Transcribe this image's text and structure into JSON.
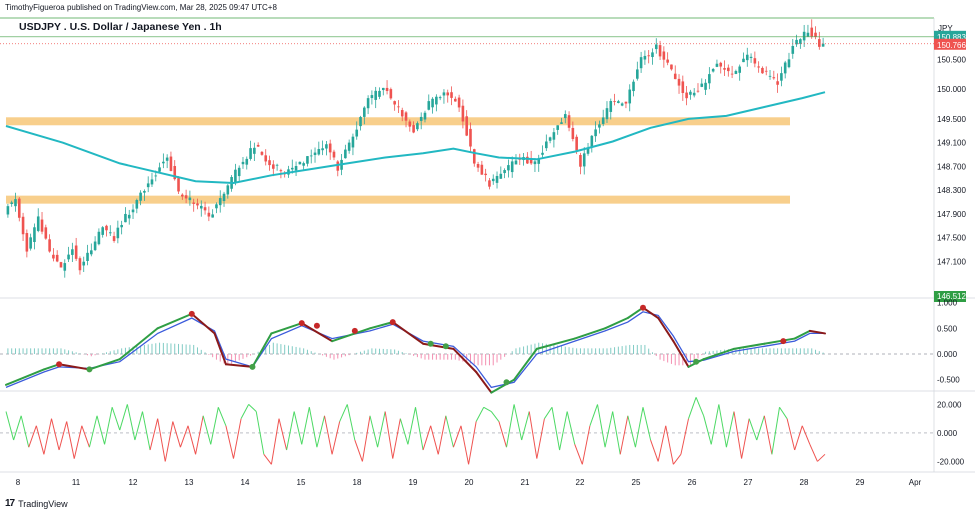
{
  "header": {
    "published_by": "TimothyFigueroa published on TradingView.com, Mar 28, 2025 09:47 UTC+8",
    "symbol_title": "USDJPY . U.S. Dollar / Japanese Yen . 1h",
    "currency": "JPY"
  },
  "footer": {
    "brand": "TradingView",
    "logo_text": "17"
  },
  "colors": {
    "up": "#26a69a",
    "down": "#ef5350",
    "ma": "#22b8c2",
    "zone": "#f8cf8c",
    "macd_fast": "#2f9e44",
    "macd_slow": "#3b5bdb",
    "macd_dark": "#8b1a1a",
    "osc_up": "#4cd964",
    "osc_down": "#ef5350",
    "price_line": "#43a047"
  },
  "chart_data": [
    {
      "type": "candlestick",
      "title": "USDJPY . U.S. Dollar / Japanese Yen . 1h",
      "x_ticks": [
        "8",
        "11",
        "12",
        "13",
        "14",
        "15",
        "18",
        "19",
        "20",
        "21",
        "22",
        "25",
        "26",
        "27",
        "28",
        "29",
        "Apr"
      ],
      "y_ticks": [
        "150.500",
        "150.000",
        "149.500",
        "149.100",
        "148.700",
        "148.300",
        "147.900",
        "147.500",
        "147.100"
      ],
      "ylim": [
        146.5,
        151.2
      ],
      "current_price": 150.883,
      "secondary_price": 150.766,
      "low_marker": 146.512,
      "path_points": [
        [
          0,
          147.95
        ],
        [
          3,
          148.15
        ],
        [
          6,
          147.3
        ],
        [
          9,
          147.8
        ],
        [
          12,
          147.25
        ],
        [
          15,
          146.95
        ],
        [
          18,
          147.35
        ],
        [
          20,
          147.0
        ],
        [
          23,
          147.3
        ],
        [
          26,
          147.7
        ],
        [
          29,
          147.5
        ],
        [
          32,
          147.85
        ],
        [
          36,
          148.2
        ],
        [
          40,
          148.6
        ],
        [
          43,
          148.9
        ],
        [
          46,
          148.25
        ],
        [
          50,
          148.1
        ],
        [
          54,
          147.85
        ],
        [
          58,
          148.25
        ],
        [
          62,
          148.7
        ],
        [
          66,
          149.05
        ],
        [
          70,
          148.75
        ],
        [
          74,
          148.6
        ],
        [
          78,
          148.75
        ],
        [
          82,
          148.95
        ],
        [
          85,
          149.1
        ],
        [
          88,
          148.65
        ],
        [
          92,
          149.2
        ],
        [
          96,
          149.8
        ],
        [
          100,
          150.05
        ],
        [
          104,
          149.65
        ],
        [
          108,
          149.3
        ],
        [
          112,
          149.75
        ],
        [
          116,
          149.95
        ],
        [
          120,
          149.75
        ],
        [
          124,
          148.8
        ],
        [
          128,
          148.4
        ],
        [
          132,
          148.6
        ],
        [
          136,
          148.85
        ],
        [
          140,
          148.75
        ],
        [
          144,
          149.2
        ],
        [
          148,
          149.55
        ],
        [
          152,
          148.75
        ],
        [
          156,
          149.3
        ],
        [
          160,
          149.75
        ],
        [
          164,
          149.8
        ],
        [
          168,
          150.5
        ],
        [
          172,
          150.7
        ],
        [
          176,
          150.3
        ],
        [
          180,
          149.85
        ],
        [
          184,
          150.05
        ],
        [
          188,
          150.45
        ],
        [
          192,
          150.25
        ],
        [
          196,
          150.55
        ],
        [
          200,
          150.3
        ],
        [
          204,
          150.1
        ],
        [
          208,
          150.7
        ],
        [
          212,
          151.0
        ],
        [
          215,
          150.75
        ],
        [
          216,
          150.766
        ]
      ],
      "moving_average": [
        [
          0,
          149.38
        ],
        [
          15,
          149.1
        ],
        [
          30,
          148.75
        ],
        [
          40,
          148.6
        ],
        [
          50,
          148.45
        ],
        [
          60,
          148.42
        ],
        [
          70,
          148.55
        ],
        [
          80,
          148.65
        ],
        [
          90,
          148.75
        ],
        [
          100,
          148.85
        ],
        [
          110,
          148.92
        ],
        [
          118,
          149.0
        ],
        [
          124,
          148.92
        ],
        [
          130,
          148.85
        ],
        [
          140,
          148.82
        ],
        [
          150,
          148.95
        ],
        [
          160,
          149.12
        ],
        [
          170,
          149.35
        ],
        [
          180,
          149.5
        ],
        [
          190,
          149.55
        ],
        [
          200,
          149.7
        ],
        [
          210,
          149.85
        ],
        [
          216,
          149.95
        ]
      ],
      "support_resistance_zones": [
        149.46,
        148.14
      ]
    },
    {
      "type": "line",
      "y_ticks": [
        "1.000",
        "0.500",
        "0.000",
        "-0.500"
      ],
      "ylim": [
        -0.7,
        1.05
      ],
      "series": [
        {
          "points": [
            [
              0,
              -0.6
            ],
            [
              10,
              -0.3
            ],
            [
              14,
              -0.2
            ],
            [
              22,
              -0.3
            ],
            [
              30,
              -0.1
            ],
            [
              40,
              0.5
            ],
            [
              49,
              0.78
            ],
            [
              55,
              0.4
            ],
            [
              58,
              -0.2
            ],
            [
              65,
              -0.25
            ],
            [
              70,
              0.4
            ],
            [
              78,
              0.6
            ],
            [
              86,
              0.25
            ],
            [
              96,
              0.5
            ],
            [
              102,
              0.62
            ],
            [
              110,
              0.2
            ],
            [
              118,
              0.1
            ],
            [
              124,
              -0.35
            ],
            [
              128,
              -0.75
            ],
            [
              134,
              -0.5
            ],
            [
              140,
              0.1
            ],
            [
              150,
              0.3
            ],
            [
              158,
              0.5
            ],
            [
              164,
              0.7
            ],
            [
              168,
              0.9
            ],
            [
              172,
              0.7
            ],
            [
              176,
              0.25
            ],
            [
              180,
              -0.25
            ],
            [
              184,
              -0.1
            ],
            [
              192,
              0.1
            ],
            [
              200,
              0.2
            ],
            [
              208,
              0.3
            ],
            [
              212,
              0.45
            ],
            [
              216,
              0.4
            ]
          ]
        },
        {
          "points": [
            [
              0,
              -0.65
            ],
            [
              10,
              -0.35
            ],
            [
              14,
              -0.25
            ],
            [
              22,
              -0.28
            ],
            [
              30,
              -0.15
            ],
            [
              40,
              0.4
            ],
            [
              49,
              0.7
            ],
            [
              55,
              0.45
            ],
            [
              58,
              -0.1
            ],
            [
              65,
              -0.25
            ],
            [
              70,
              0.3
            ],
            [
              78,
              0.55
            ],
            [
              86,
              0.3
            ],
            [
              96,
              0.45
            ],
            [
              102,
              0.58
            ],
            [
              110,
              0.25
            ],
            [
              118,
              0.15
            ],
            [
              124,
              -0.25
            ],
            [
              128,
              -0.65
            ],
            [
              134,
              -0.55
            ],
            [
              140,
              0.0
            ],
            [
              150,
              0.25
            ],
            [
              158,
              0.45
            ],
            [
              164,
              0.62
            ],
            [
              168,
              0.82
            ],
            [
              172,
              0.75
            ],
            [
              176,
              0.35
            ],
            [
              180,
              -0.15
            ],
            [
              184,
              -0.12
            ],
            [
              192,
              0.05
            ],
            [
              200,
              0.15
            ],
            [
              208,
              0.25
            ],
            [
              212,
              0.4
            ],
            [
              216,
              0.4
            ]
          ]
        }
      ],
      "dots": [
        [
          14,
          -0.2,
          "down"
        ],
        [
          22,
          -0.3,
          "up"
        ],
        [
          49,
          0.78,
          "down"
        ],
        [
          65,
          -0.25,
          "up"
        ],
        [
          78,
          0.6,
          "down"
        ],
        [
          82,
          0.55,
          "down"
        ],
        [
          92,
          0.45,
          "down"
        ],
        [
          102,
          0.62,
          "down"
        ],
        [
          112,
          0.2,
          "up"
        ],
        [
          116,
          0.15,
          "up"
        ],
        [
          132,
          -0.55,
          "up"
        ],
        [
          168,
          0.9,
          "down"
        ],
        [
          182,
          -0.15,
          "up"
        ],
        [
          205,
          0.25,
          "down"
        ]
      ]
    },
    {
      "type": "line",
      "y_ticks": [
        "20.000",
        "0.000",
        "-20.000"
      ],
      "ylim": [
        -26,
        28
      ],
      "series": [
        {
          "points": [
            [
              0,
              15
            ],
            [
              2,
              -5
            ],
            [
              4,
              12
            ],
            [
              6,
              -10
            ],
            [
              8,
              5
            ],
            [
              10,
              -15
            ],
            [
              12,
              10
            ],
            [
              14,
              -12
            ],
            [
              16,
              8
            ],
            [
              18,
              -18
            ],
            [
              20,
              5
            ],
            [
              22,
              -10
            ],
            [
              24,
              12
            ],
            [
              26,
              -8
            ],
            [
              28,
              18
            ],
            [
              30,
              2
            ],
            [
              32,
              20
            ],
            [
              34,
              -5
            ],
            [
              36,
              15
            ],
            [
              38,
              -12
            ],
            [
              40,
              10
            ],
            [
              42,
              -20
            ],
            [
              44,
              8
            ],
            [
              46,
              -10
            ],
            [
              48,
              5
            ],
            [
              50,
              -15
            ],
            [
              52,
              12
            ],
            [
              54,
              -8
            ],
            [
              56,
              18
            ],
            [
              58,
              5
            ],
            [
              60,
              -18
            ],
            [
              62,
              10
            ],
            [
              64,
              20
            ],
            [
              66,
              15
            ],
            [
              68,
              -15
            ],
            [
              70,
              -22
            ],
            [
              72,
              10
            ],
            [
              74,
              -12
            ],
            [
              76,
              15
            ],
            [
              78,
              -8
            ],
            [
              80,
              18
            ],
            [
              82,
              -10
            ],
            [
              84,
              12
            ],
            [
              86,
              -15
            ],
            [
              88,
              8
            ],
            [
              90,
              20
            ],
            [
              92,
              -5
            ],
            [
              94,
              -20
            ],
            [
              96,
              12
            ],
            [
              98,
              -10
            ],
            [
              100,
              15
            ],
            [
              102,
              -18
            ],
            [
              104,
              10
            ],
            [
              106,
              -8
            ],
            [
              108,
              18
            ],
            [
              110,
              -12
            ],
            [
              112,
              5
            ],
            [
              114,
              -15
            ],
            [
              116,
              12
            ],
            [
              118,
              -10
            ],
            [
              120,
              5
            ],
            [
              122,
              -22
            ],
            [
              124,
              8
            ],
            [
              126,
              18
            ],
            [
              128,
              15
            ],
            [
              130,
              8
            ],
            [
              132,
              -10
            ],
            [
              134,
              20
            ],
            [
              136,
              -5
            ],
            [
              138,
              15
            ],
            [
              140,
              -18
            ],
            [
              142,
              10
            ],
            [
              144,
              18
            ],
            [
              146,
              -12
            ],
            [
              148,
              15
            ],
            [
              150,
              -8
            ],
            [
              152,
              -22
            ],
            [
              154,
              5
            ],
            [
              156,
              20
            ],
            [
              158,
              -10
            ],
            [
              160,
              15
            ],
            [
              162,
              -15
            ],
            [
              164,
              12
            ],
            [
              166,
              -10
            ],
            [
              168,
              18
            ],
            [
              170,
              -5
            ],
            [
              172,
              -20
            ],
            [
              174,
              5
            ],
            [
              176,
              -22
            ],
            [
              178,
              -15
            ],
            [
              180,
              10
            ],
            [
              182,
              25
            ],
            [
              184,
              12
            ],
            [
              186,
              -8
            ],
            [
              188,
              20
            ],
            [
              190,
              -10
            ],
            [
              192,
              15
            ],
            [
              194,
              -18
            ],
            [
              196,
              10
            ],
            [
              198,
              -5
            ],
            [
              200,
              12
            ],
            [
              202,
              -15
            ],
            [
              204,
              18
            ],
            [
              206,
              10
            ],
            [
              208,
              -12
            ],
            [
              210,
              5
            ],
            [
              212,
              -8
            ],
            [
              214,
              -20
            ],
            [
              216,
              -15
            ]
          ]
        }
      ]
    }
  ]
}
